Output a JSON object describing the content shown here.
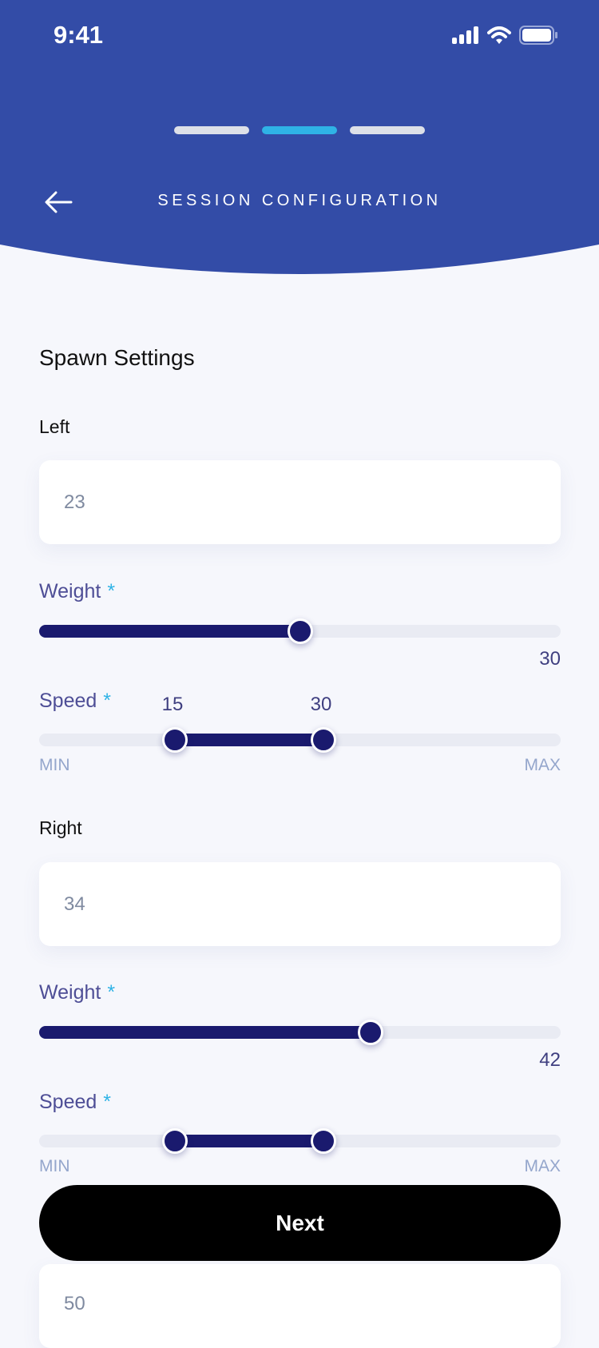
{
  "status_bar": {
    "time": "9:41"
  },
  "colors": {
    "header": "#334ca7",
    "accent": "#2fb3e6",
    "slider": "#1a1a6e",
    "button": "#000000"
  },
  "progress": {
    "steps": 3,
    "current": 2
  },
  "header": {
    "title": "SESSION CONFIGURATION",
    "back_icon": "arrow-left-icon"
  },
  "section_title": "Spawn Settings",
  "left": {
    "label": "Left",
    "value": "23",
    "weight": {
      "label": "Weight",
      "required": "*",
      "value": 30,
      "value_text": "30",
      "fraction": 0.5
    },
    "speed": {
      "label": "Speed",
      "required": "*",
      "low": 15,
      "high": 30,
      "low_text": "15",
      "high_text": "30",
      "low_fraction": 0.26,
      "high_fraction": 0.545,
      "min_label": "MIN",
      "max_label": "MAX"
    }
  },
  "right": {
    "label": "Right",
    "value": "34",
    "weight": {
      "label": "Weight",
      "required": "*",
      "value": 42,
      "value_text": "42",
      "fraction": 0.635
    },
    "speed": {
      "label": "Speed",
      "required": "*",
      "low_fraction": 0.26,
      "high_fraction": 0.545,
      "min_label": "MIN",
      "max_label": "MAX"
    }
  },
  "next_button": {
    "label": "Next"
  },
  "next_field": {
    "value": "50"
  }
}
